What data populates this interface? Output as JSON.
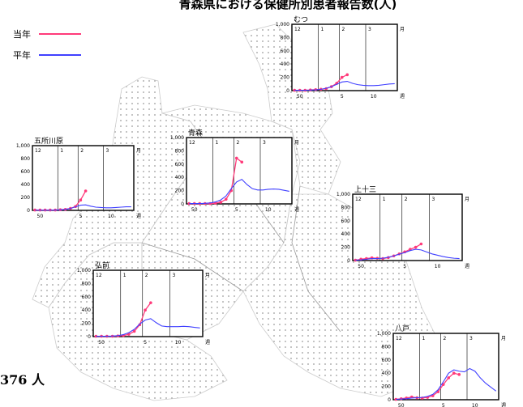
{
  "header": {
    "title": "青森県における保健所別患者報告数(人)",
    "total_label": "376 人"
  },
  "legend": {
    "current_year_label": "当年",
    "average_label": "平年",
    "current_color": "#ff3a7a",
    "average_color": "#4040ff"
  },
  "chart_data": [
    {
      "type": "line",
      "title": "むつ",
      "ylim": [
        0,
        1000
      ],
      "y_ticks": [
        "1,000",
        "800",
        "600",
        "400",
        "200",
        "0"
      ],
      "month_labels": [
        "12",
        "1",
        "2",
        "3"
      ],
      "month_unit": "月",
      "week_labels": [
        "50",
        "5",
        "10"
      ],
      "week_unit": "週",
      "series": [
        {
          "name": "当年",
          "x": [
            1,
            2,
            3,
            4,
            5,
            6,
            7,
            8,
            9,
            10,
            11
          ],
          "values": [
            5,
            5,
            5,
            10,
            15,
            20,
            30,
            60,
            110,
            200,
            240
          ]
        },
        {
          "name": "平年",
          "x": [
            1,
            2,
            3,
            4,
            5,
            6,
            7,
            8,
            9,
            10,
            11,
            12,
            13,
            14,
            15,
            16,
            17,
            18,
            19,
            20
          ],
          "values": [
            5,
            5,
            5,
            8,
            12,
            20,
            35,
            60,
            95,
            130,
            140,
            110,
            90,
            80,
            75,
            75,
            80,
            90,
            100,
            105
          ]
        }
      ]
    },
    {
      "type": "line",
      "title": "五所川原",
      "ylim": [
        0,
        1000
      ],
      "y_ticks": [
        "1,000",
        "800",
        "600",
        "400",
        "200",
        "0"
      ],
      "month_labels": [
        "12",
        "1",
        "2",
        "3"
      ],
      "month_unit": "月",
      "week_labels": [
        "50",
        "5",
        "10"
      ],
      "week_unit": "週",
      "series": [
        {
          "name": "当年",
          "x": [
            1,
            2,
            3,
            4,
            5,
            6,
            7,
            8,
            9,
            10,
            11
          ],
          "values": [
            5,
            5,
            5,
            5,
            5,
            10,
            15,
            30,
            60,
            160,
            300
          ]
        },
        {
          "name": "平年",
          "x": [
            1,
            2,
            3,
            4,
            5,
            6,
            7,
            8,
            9,
            10,
            11,
            12,
            13,
            14,
            15,
            16,
            17,
            18,
            19,
            20
          ],
          "values": [
            3,
            3,
            3,
            3,
            5,
            8,
            15,
            30,
            55,
            80,
            85,
            65,
            50,
            45,
            40,
            40,
            45,
            50,
            55,
            55
          ]
        }
      ]
    },
    {
      "type": "line",
      "title": "青森",
      "ylim": [
        0,
        1000
      ],
      "y_ticks": [
        "1,000",
        "800",
        "600",
        "400",
        "200",
        "0"
      ],
      "month_labels": [
        "12",
        "1",
        "2",
        "3"
      ],
      "month_unit": "月",
      "week_labels": [
        "50",
        "5",
        "10"
      ],
      "week_unit": "週",
      "series": [
        {
          "name": "当年",
          "x": [
            1,
            2,
            3,
            4,
            5,
            6,
            7,
            8,
            9,
            10,
            11
          ],
          "values": [
            5,
            5,
            5,
            5,
            5,
            10,
            25,
            70,
            200,
            690,
            630
          ]
        },
        {
          "name": "平年",
          "x": [
            1,
            2,
            3,
            4,
            5,
            6,
            7,
            8,
            9,
            10,
            11,
            12,
            13,
            14,
            15,
            16,
            17,
            18,
            19,
            20
          ],
          "values": [
            5,
            5,
            5,
            8,
            15,
            30,
            60,
            120,
            230,
            330,
            370,
            290,
            230,
            210,
            210,
            220,
            225,
            220,
            205,
            190
          ]
        }
      ]
    },
    {
      "type": "line",
      "title": "上十三",
      "ylim": [
        0,
        1000
      ],
      "y_ticks": [
        "1,000",
        "800",
        "600",
        "400",
        "200",
        "0"
      ],
      "month_labels": [
        "12",
        "1",
        "2",
        "3"
      ],
      "month_unit": "月",
      "week_labels": [
        "50",
        "5",
        "10"
      ],
      "week_unit": "週",
      "series": [
        {
          "name": "当年",
          "x": [
            1,
            2,
            3,
            4,
            5,
            6,
            7,
            8,
            9,
            10,
            11,
            12,
            13
          ],
          "values": [
            5,
            20,
            30,
            40,
            35,
            30,
            45,
            70,
            100,
            130,
            170,
            200,
            250
          ]
        },
        {
          "name": "平年",
          "x": [
            1,
            2,
            3,
            4,
            5,
            6,
            7,
            8,
            9,
            10,
            11,
            12,
            13,
            14,
            15,
            16,
            17,
            18,
            19,
            20
          ],
          "values": [
            5,
            10,
            20,
            30,
            30,
            35,
            50,
            70,
            95,
            120,
            150,
            170,
            160,
            130,
            100,
            80,
            60,
            45,
            35,
            30
          ]
        }
      ]
    },
    {
      "type": "line",
      "title": "弘前",
      "ylim": [
        0,
        1000
      ],
      "y_ticks": [
        "1,000",
        "800",
        "600",
        "400",
        "200",
        "0"
      ],
      "month_labels": [
        "12",
        "1",
        "2",
        "3"
      ],
      "month_unit": "月",
      "week_labels": [
        "50",
        "5",
        "10"
      ],
      "week_unit": "週",
      "series": [
        {
          "name": "当年",
          "x": [
            1,
            2,
            3,
            4,
            5,
            6,
            7,
            8,
            9,
            10,
            11
          ],
          "values": [
            5,
            5,
            5,
            5,
            10,
            15,
            35,
            80,
            180,
            400,
            510
          ]
        },
        {
          "name": "平年",
          "x": [
            1,
            2,
            3,
            4,
            5,
            6,
            7,
            8,
            9,
            10,
            11,
            12,
            13,
            14,
            15,
            16,
            17,
            18,
            19,
            20
          ],
          "values": [
            5,
            5,
            5,
            8,
            15,
            30,
            60,
            110,
            190,
            250,
            270,
            210,
            160,
            150,
            150,
            150,
            155,
            150,
            140,
            130
          ]
        }
      ]
    },
    {
      "type": "line",
      "title": "八戸",
      "ylim": [
        0,
        1000
      ],
      "y_ticks": [
        "1,000",
        "800",
        "600",
        "400",
        "200",
        "0"
      ],
      "month_labels": [
        "12",
        "1",
        "2",
        "3"
      ],
      "month_unit": "月",
      "week_labels": [
        "50",
        "5",
        "10"
      ],
      "week_unit": "週",
      "series": [
        {
          "name": "当年",
          "x": [
            1,
            2,
            3,
            4,
            5,
            6,
            7,
            8,
            9,
            10,
            11,
            12,
            13
          ],
          "values": [
            5,
            15,
            25,
            40,
            30,
            25,
            35,
            60,
            120,
            230,
            330,
            400,
            380
          ]
        },
        {
          "name": "平年",
          "x": [
            1,
            2,
            3,
            4,
            5,
            6,
            7,
            8,
            9,
            10,
            11,
            12,
            13,
            14,
            15,
            16,
            17,
            18,
            19,
            20
          ],
          "values": [
            5,
            10,
            15,
            25,
            30,
            35,
            50,
            80,
            150,
            270,
            400,
            450,
            430,
            420,
            470,
            430,
            330,
            250,
            190,
            130
          ]
        }
      ]
    }
  ]
}
